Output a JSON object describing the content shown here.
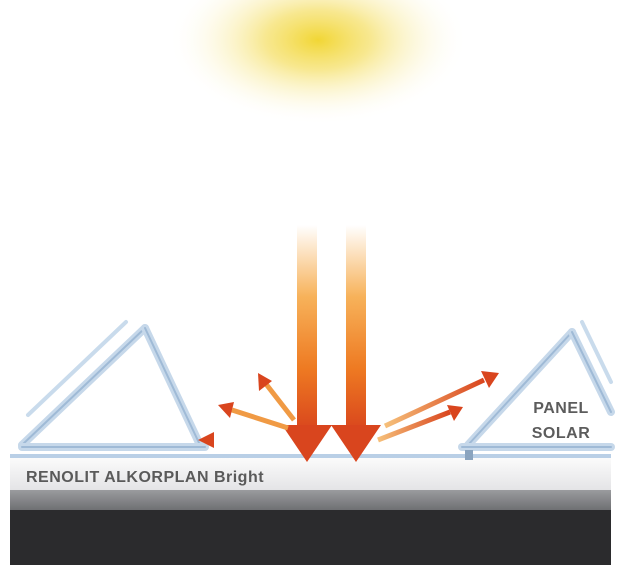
{
  "membrane": {
    "name": "RENOLIT ALKORPLAN Bright"
  },
  "panel": {
    "line1": "PANEL",
    "line2": "SOLAR"
  },
  "colors": {
    "sun": "#f3dc3c",
    "arrow_orange": "#f08a1e",
    "arrow_red": "#d9451e",
    "frame_blue": "#b7cde3",
    "roof_dark": "#2a2a2c",
    "roof_gray": "#8e8f92"
  }
}
